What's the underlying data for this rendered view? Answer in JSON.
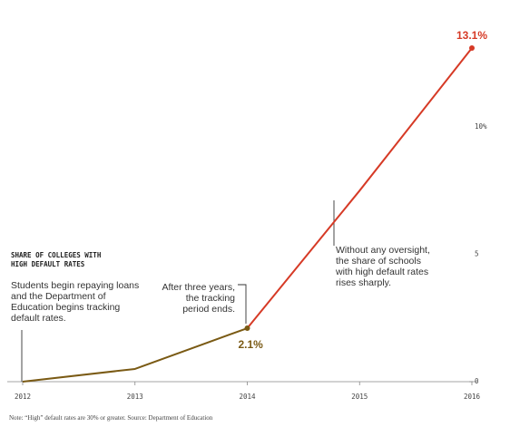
{
  "chart_data": {
    "type": "line",
    "title": "SHARE OF COLLEGES WITH HIGH DEFAULT RATES",
    "x": [
      2012,
      2013,
      2014,
      2015,
      2016
    ],
    "series": [
      {
        "values": [
          0,
          0.5,
          2.1,
          7.5,
          13.1
        ],
        "colors": {
          "early": "#7a5a14",
          "late": "#d63a26"
        }
      }
    ],
    "xlim": [
      2012,
      2016
    ],
    "ylim": [
      0,
      13.1
    ],
    "x_ticks": [
      "2012",
      "2013",
      "2014",
      "2015",
      "2016"
    ],
    "y_ticks": [
      {
        "value": 0,
        "label": "0"
      },
      {
        "value": 5,
        "label": "5"
      },
      {
        "value": 10,
        "label": "10%"
      }
    ],
    "value_labels": [
      {
        "x": 2014,
        "y": 2.1,
        "text": "2.1%",
        "color": "#7a5a14"
      },
      {
        "x": 2016,
        "y": 13.1,
        "text": "13.1%",
        "color": "#d63a26"
      }
    ],
    "annotations": [
      {
        "x": 2012,
        "lines": [
          "Students begin repaying loans",
          "and the Department of",
          "Education begins tracking",
          "default rates."
        ]
      },
      {
        "x": 2014,
        "lines": [
          "After three years,",
          "the tracking",
          "period ends."
        ]
      },
      {
        "x": 2015,
        "lines": [
          "Without any oversight,",
          "the share of schools",
          "with high default rates",
          "rises sharply."
        ]
      }
    ],
    "note": "Note: “High” default rates are 30% or greater. Source: Department of Education",
    "grid": false
  }
}
